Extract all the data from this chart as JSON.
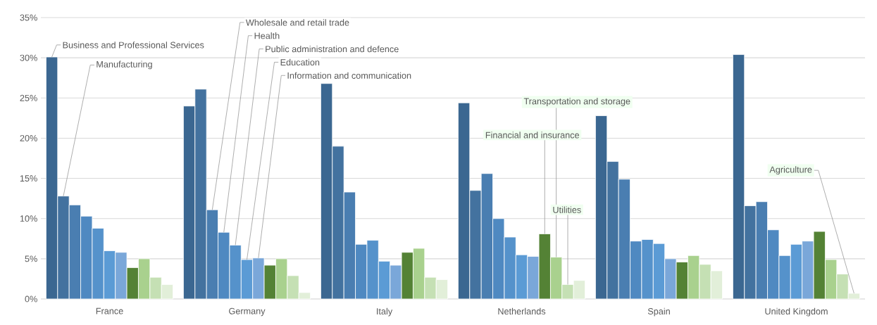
{
  "chart_data": {
    "type": "bar",
    "categories": [
      "France",
      "Germany",
      "Italy",
      "Netherlands",
      "Spain",
      "United Kingdom"
    ],
    "series": [
      {
        "name": "Business and Professional Services",
        "color": "#3b6791",
        "values": [
          30.1,
          24.0,
          26.8,
          24.4,
          22.8,
          30.4
        ]
      },
      {
        "name": "Manufacturing",
        "color": "#43729f",
        "values": [
          12.8,
          26.1,
          19.0,
          13.5,
          17.1,
          11.6
        ]
      },
      {
        "name": "Wholesale and retail trade",
        "color": "#4a7eb1",
        "values": [
          11.7,
          11.1,
          13.3,
          15.6,
          14.9,
          12.1
        ]
      },
      {
        "name": "Health",
        "color": "#4f89c1",
        "values": [
          10.3,
          8.3,
          6.8,
          10.0,
          7.2,
          8.6
        ]
      },
      {
        "name": "Public administration and defence",
        "color": "#5592cb",
        "values": [
          8.8,
          6.7,
          7.3,
          7.7,
          7.4,
          5.4
        ]
      },
      {
        "name": "Education",
        "color": "#5b9bd5",
        "values": [
          6.0,
          4.9,
          4.7,
          5.5,
          6.9,
          6.8
        ]
      },
      {
        "name": "Information and communication",
        "color": "#7aa7d9",
        "values": [
          5.8,
          5.1,
          4.2,
          5.3,
          5.0,
          7.2
        ]
      },
      {
        "name": "Financial and insurance",
        "color": "#548235",
        "values": [
          3.9,
          4.2,
          5.8,
          8.1,
          4.6,
          8.4
        ]
      },
      {
        "name": "Transportation and storage",
        "color": "#a9d18e",
        "values": [
          5.0,
          5.0,
          6.3,
          5.2,
          5.4,
          4.9
        ]
      },
      {
        "name": "Utilities",
        "color": "#c5e0b4",
        "values": [
          2.7,
          2.9,
          2.7,
          1.8,
          4.3,
          3.1
        ]
      },
      {
        "name": "Agriculture",
        "color": "#e2efd9",
        "values": [
          1.8,
          0.8,
          2.4,
          2.3,
          3.5,
          0.7
        ]
      }
    ],
    "ylim": [
      0,
      35
    ],
    "yticks": [
      {
        "value": 0,
        "label": "0%"
      },
      {
        "value": 5,
        "label": "5%"
      },
      {
        "value": 10,
        "label": "10%"
      },
      {
        "value": 15,
        "label": "15%"
      },
      {
        "value": 20,
        "label": "20%"
      },
      {
        "value": 25,
        "label": "25%"
      },
      {
        "value": 30,
        "label": "30%"
      },
      {
        "value": 35,
        "label": "35%"
      }
    ],
    "grid": "y",
    "legend": false
  }
}
